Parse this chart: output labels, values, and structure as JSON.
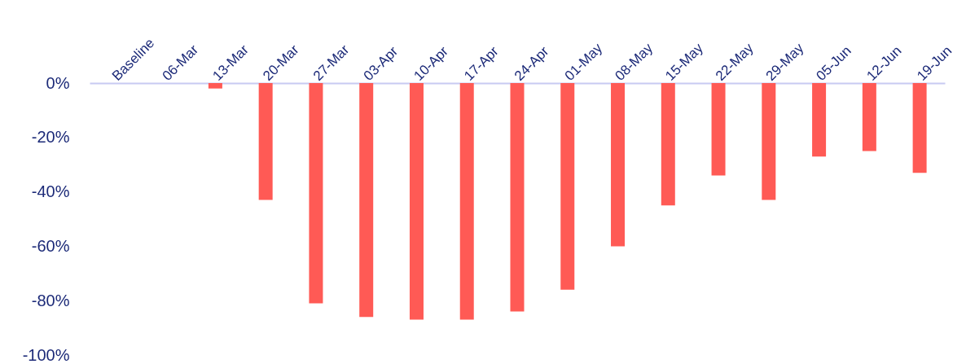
{
  "chart_data": {
    "type": "bar",
    "categories": [
      "Baseline",
      "06-Mar",
      "13-Mar",
      "20-Mar",
      "27-Mar",
      "03-Apr",
      "10-Apr",
      "17-Apr",
      "24-Apr",
      "01-May",
      "08-May",
      "15-May",
      "22-May",
      "29-May",
      "05-Jun",
      "12-Jun",
      "19-Jun"
    ],
    "values": [
      0,
      0,
      -2,
      -43,
      -81,
      -86,
      -87,
      -87,
      -84,
      -76,
      -60,
      -45,
      -34,
      -43,
      -27,
      -25,
      -33
    ],
    "color": "#ff5a55",
    "ylim": [
      -100,
      0
    ],
    "yticks": [
      {
        "value": 0,
        "label": "0%"
      },
      {
        "value": -20,
        "label": "-20%"
      },
      {
        "value": -40,
        "label": "-40%"
      },
      {
        "value": -60,
        "label": "-60%"
      },
      {
        "value": -80,
        "label": "-80%"
      },
      {
        "value": -100,
        "label": "-100%"
      }
    ],
    "grid": false
  }
}
